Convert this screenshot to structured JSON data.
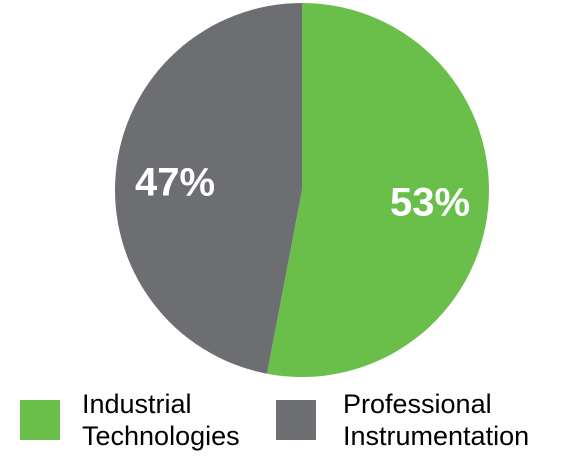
{
  "chart_data": {
    "type": "pie",
    "title": "",
    "slices": [
      {
        "label": "Industrial Technologies",
        "legend_lines": [
          "Industrial",
          "Technologies"
        ],
        "value": 53,
        "display": "53%",
        "color": "#6abf4b"
      },
      {
        "label": "Professional Instrumentation",
        "legend_lines": [
          "Professional",
          "Instrumentation"
        ],
        "value": 47,
        "display": "47%",
        "color": "#6d6e71"
      }
    ],
    "start_angle": "12 o'clock",
    "direction": "clockwise",
    "legend_position": "bottom"
  }
}
